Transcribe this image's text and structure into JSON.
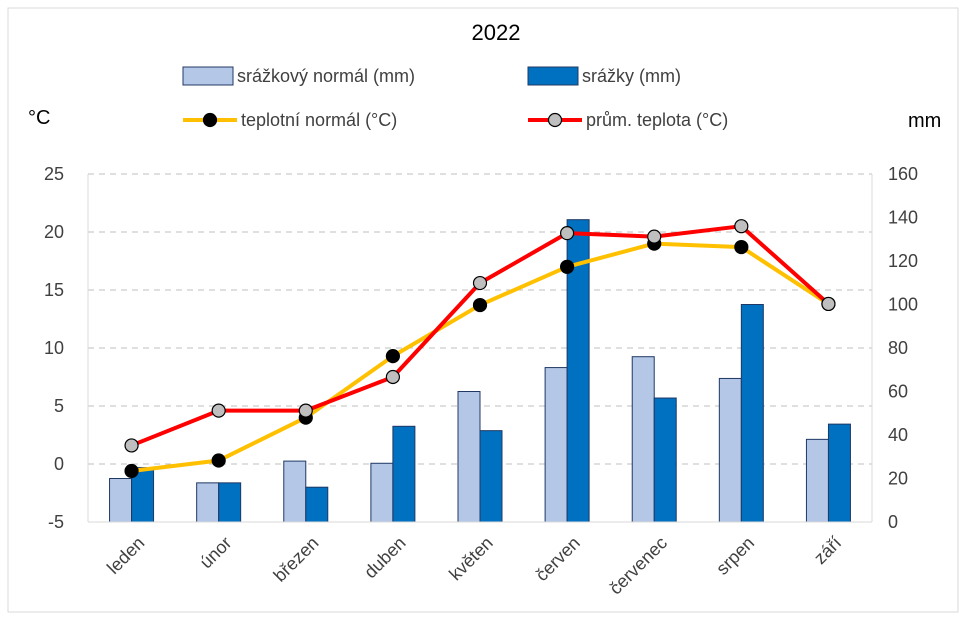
{
  "chart_data": {
    "type": "bar",
    "title": "2022",
    "categories": [
      "leden",
      "únor",
      "březen",
      "duben",
      "květen",
      "červen",
      "červenec",
      "srpen",
      "září"
    ],
    "left_axis": {
      "unit_label": "°C",
      "min": -5,
      "max": 25,
      "step": 5,
      "ticks": [
        "-5",
        "0",
        "5",
        "10",
        "15",
        "20",
        "25"
      ]
    },
    "right_axis": {
      "unit_label": "mm",
      "min": 0,
      "max": 160,
      "step": 20,
      "ticks": [
        "0",
        "20",
        "40",
        "60",
        "80",
        "100",
        "120",
        "140",
        "160"
      ]
    },
    "grid": true,
    "legend_placement": "top",
    "series": [
      {
        "name": "srážkový normál (mm)",
        "kind": "bar",
        "axis": "right",
        "color": "#B4C7E7",
        "values": [
          20,
          18,
          28,
          27,
          60,
          71,
          76,
          66,
          38
        ]
      },
      {
        "name": "srážky (mm)",
        "kind": "bar",
        "axis": "right",
        "color": "#0070C0",
        "values": [
          25,
          18,
          16,
          44,
          42,
          139,
          57,
          100,
          45
        ]
      },
      {
        "name": "teplotní normál (°C)",
        "kind": "line",
        "axis": "left",
        "color": "#FFC000",
        "marker_color": "#000000",
        "values": [
          -0.6,
          0.3,
          4.0,
          9.3,
          13.7,
          17.0,
          19.0,
          18.7,
          13.8
        ]
      },
      {
        "name": "prům. teplota (°C)",
        "kind": "line",
        "axis": "left",
        "color": "#FF0000",
        "marker_color": "#BFBFBF",
        "values": [
          1.6,
          4.6,
          4.6,
          7.5,
          15.6,
          19.9,
          19.6,
          20.5,
          13.8
        ]
      }
    ]
  }
}
